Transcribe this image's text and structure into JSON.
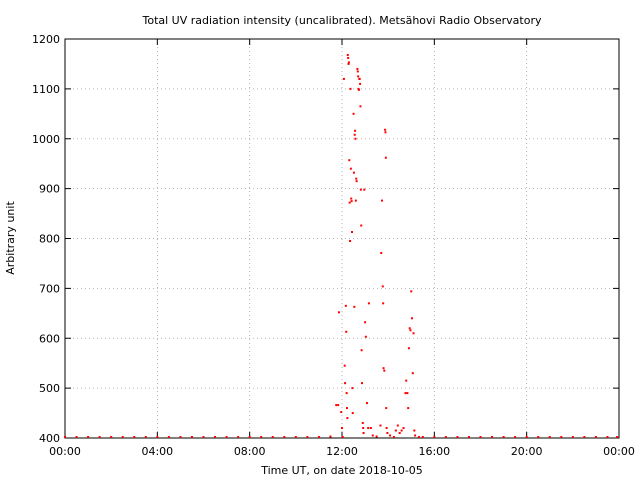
{
  "chart_data": {
    "type": "scatter",
    "title": "Total UV radiation intensity (uncalibrated). Metsähovi Radio Observatory",
    "xlabel": "Time UT, on date 2018-10-05",
    "ylabel": "Arbitrary unit",
    "xlim": [
      "00:00",
      "24:00"
    ],
    "ylim": [
      400,
      1200
    ],
    "grid": true,
    "x_ticks": [
      "00:00",
      "04:00",
      "08:00",
      "12:00",
      "16:00",
      "20:00",
      "00:00"
    ],
    "y_ticks": [
      "400",
      "500",
      "600",
      "700",
      "800",
      "900",
      "1000",
      "1100",
      "1200"
    ],
    "series": [
      {
        "color": "#ff0000",
        "marker": "dot",
        "points": [
          [
            "00:00",
            401
          ],
          [
            "00:30",
            401
          ],
          [
            "01:00",
            401
          ],
          [
            "01:30",
            401
          ],
          [
            "02:00",
            401
          ],
          [
            "02:30",
            401
          ],
          [
            "03:00",
            401
          ],
          [
            "03:30",
            402
          ],
          [
            "04:00",
            402
          ],
          [
            "04:30",
            401
          ],
          [
            "05:00",
            402
          ],
          [
            "05:30",
            401
          ],
          [
            "06:00",
            402
          ],
          [
            "06:30",
            402
          ],
          [
            "07:00",
            402
          ],
          [
            "07:30",
            401
          ],
          [
            "08:00",
            401
          ],
          [
            "08:30",
            401
          ],
          [
            "09:00",
            401
          ],
          [
            "09:30",
            401
          ],
          [
            "10:00",
            401
          ],
          [
            "10:30",
            401
          ],
          [
            "11:00",
            401
          ],
          [
            "11:30",
            403
          ],
          [
            "11:45",
            466
          ],
          [
            "11:50",
            466
          ],
          [
            "11:52",
            652
          ],
          [
            "11:58",
            452
          ],
          [
            "12:00",
            420
          ],
          [
            "12:02",
            402
          ],
          [
            "12:05",
            1120
          ],
          [
            "12:07",
            545
          ],
          [
            "12:08",
            510
          ],
          [
            "12:10",
            665
          ],
          [
            "12:11",
            613
          ],
          [
            "12:12",
            490
          ],
          [
            "12:13",
            460
          ],
          [
            "12:14",
            440
          ],
          [
            "12:15",
            1168
          ],
          [
            "12:16",
            1162
          ],
          [
            "12:17",
            1150
          ],
          [
            "12:18",
            1153
          ],
          [
            "12:19",
            957
          ],
          [
            "12:20",
            872
          ],
          [
            "12:21",
            795
          ],
          [
            "12:22",
            1100
          ],
          [
            "12:23",
            940
          ],
          [
            "12:24",
            880
          ],
          [
            "12:25",
            875
          ],
          [
            "12:26",
            813
          ],
          [
            "12:27",
            500
          ],
          [
            "12:28",
            450
          ],
          [
            "12:30",
            1050
          ],
          [
            "12:31",
            932
          ],
          [
            "12:32",
            663
          ],
          [
            "12:33",
            1008
          ],
          [
            "12:34",
            1016
          ],
          [
            "12:35",
            1000
          ],
          [
            "12:36",
            876
          ],
          [
            "12:37",
            920
          ],
          [
            "12:38",
            915
          ],
          [
            "12:40",
            1140
          ],
          [
            "12:41",
            1135
          ],
          [
            "12:42",
            1125
          ],
          [
            "12:43",
            1100
          ],
          [
            "12:44",
            1098
          ],
          [
            "12:45",
            1120
          ],
          [
            "12:46",
            1120
          ],
          [
            "12:47",
            1110
          ],
          [
            "12:48",
            1065
          ],
          [
            "12:49",
            898
          ],
          [
            "12:50",
            826
          ],
          [
            "12:51",
            576
          ],
          [
            "12:52",
            510
          ],
          [
            "12:54",
            430
          ],
          [
            "12:55",
            420
          ],
          [
            "12:56",
            410
          ],
          [
            "12:58",
            898
          ],
          [
            "13:00",
            632
          ],
          [
            "13:02",
            603
          ],
          [
            "13:05",
            470
          ],
          [
            "13:08",
            420
          ],
          [
            "13:10",
            670
          ],
          [
            "13:15",
            420
          ],
          [
            "13:20",
            405
          ],
          [
            "13:30",
            403
          ],
          [
            "13:40",
            425
          ],
          [
            "13:42",
            771
          ],
          [
            "13:44",
            876
          ],
          [
            "13:46",
            704
          ],
          [
            "13:47",
            670
          ],
          [
            "13:48",
            540
          ],
          [
            "13:50",
            535
          ],
          [
            "13:52",
            1018
          ],
          [
            "13:53",
            1013
          ],
          [
            "13:54",
            962
          ],
          [
            "13:55",
            460
          ],
          [
            "13:56",
            420
          ],
          [
            "13:58",
            410
          ],
          [
            "14:05",
            405
          ],
          [
            "14:15",
            402
          ],
          [
            "14:20",
            415
          ],
          [
            "14:25",
            425
          ],
          [
            "14:30",
            410
          ],
          [
            "14:35",
            415
          ],
          [
            "14:40",
            420
          ],
          [
            "14:45",
            490
          ],
          [
            "14:47",
            515
          ],
          [
            "14:50",
            490
          ],
          [
            "14:52",
            460
          ],
          [
            "14:54",
            580
          ],
          [
            "14:56",
            620
          ],
          [
            "14:58",
            616
          ],
          [
            "15:00",
            694
          ],
          [
            "15:02",
            640
          ],
          [
            "15:04",
            530
          ],
          [
            "15:06",
            610
          ],
          [
            "15:08",
            415
          ],
          [
            "15:10",
            405
          ],
          [
            "15:20",
            402
          ],
          [
            "15:30",
            401
          ],
          [
            "16:00",
            401
          ],
          [
            "16:30",
            401
          ],
          [
            "17:00",
            401
          ],
          [
            "17:30",
            401
          ],
          [
            "18:00",
            401
          ],
          [
            "18:30",
            402
          ],
          [
            "19:00",
            401
          ],
          [
            "19:30",
            401
          ],
          [
            "20:00",
            401
          ],
          [
            "20:30",
            401
          ],
          [
            "21:00",
            401
          ],
          [
            "21:30",
            401
          ],
          [
            "22:00",
            402
          ],
          [
            "22:30",
            401
          ],
          [
            "23:00",
            401
          ],
          [
            "23:30",
            401
          ],
          [
            "23:55",
            401
          ]
        ]
      }
    ]
  }
}
